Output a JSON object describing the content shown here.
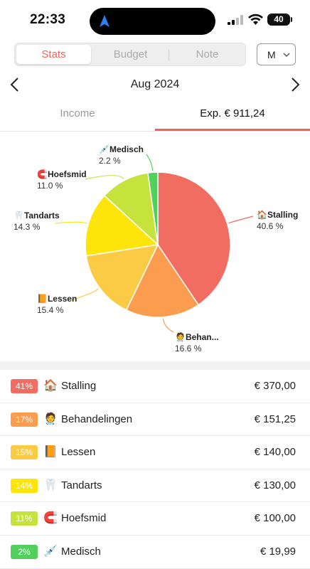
{
  "status_bar": {
    "time": "22:33",
    "battery": "40"
  },
  "segment": {
    "items": [
      "Stats",
      "Budget",
      "Note"
    ],
    "active": 0
  },
  "period_select": {
    "value": "M"
  },
  "month": {
    "label": "Aug 2024"
  },
  "tabs": {
    "income": "Income",
    "expense": "Exp. € 911,24",
    "active": "expense"
  },
  "chart_data": {
    "type": "pie",
    "start": "12 o'clock, clockwise",
    "slices": [
      {
        "name": "Stalling",
        "label": "Stalling",
        "icon": "🏠",
        "percent": 40.6,
        "percent_label": "40.6 %",
        "color": "#f16d61"
      },
      {
        "name": "Behandelingen",
        "label": "Behan...",
        "icon": "🧑‍⚕️",
        "percent": 16.6,
        "percent_label": "16.6 %",
        "color": "#fb9c4e"
      },
      {
        "name": "Lessen",
        "label": "Lessen",
        "icon": "📙",
        "percent": 15.4,
        "percent_label": "15.4 %",
        "color": "#fccb45"
      },
      {
        "name": "Tandarts",
        "label": "Tandarts",
        "icon": "🦷",
        "percent": 14.3,
        "percent_label": "14.3 %",
        "color": "#fde40b"
      },
      {
        "name": "Hoefsmid",
        "label": "Hoefsmid",
        "icon": "🧲",
        "percent": 11.0,
        "percent_label": "11.0 %",
        "color": "#c6e33d"
      },
      {
        "name": "Medisch",
        "label": "Medisch",
        "icon": "💉",
        "percent": 2.2,
        "percent_label": "2.2 %",
        "color": "#52d05e"
      }
    ]
  },
  "list": [
    {
      "badge": "41%",
      "color": "#f16d61",
      "icon": "🏠",
      "name": "Stalling",
      "amount": "€ 370,00"
    },
    {
      "badge": "17%",
      "color": "#fb9c4e",
      "icon": "🧑‍⚕️",
      "name": "Behandelingen",
      "amount": "€ 151,25"
    },
    {
      "badge": "15%",
      "color": "#fccb45",
      "icon": "📙",
      "name": "Lessen",
      "amount": "€ 140,00"
    },
    {
      "badge": "14%",
      "color": "#fde40b",
      "icon": "🦷",
      "name": "Tandarts",
      "amount": "€ 130,00"
    },
    {
      "badge": "11%",
      "color": "#c6e33d",
      "icon": "🧲",
      "name": "Hoefsmid",
      "amount": "€ 100,00"
    },
    {
      "badge": "2%",
      "color": "#52d05e",
      "icon": "💉",
      "name": "Medisch",
      "amount": "€ 19,99"
    }
  ]
}
